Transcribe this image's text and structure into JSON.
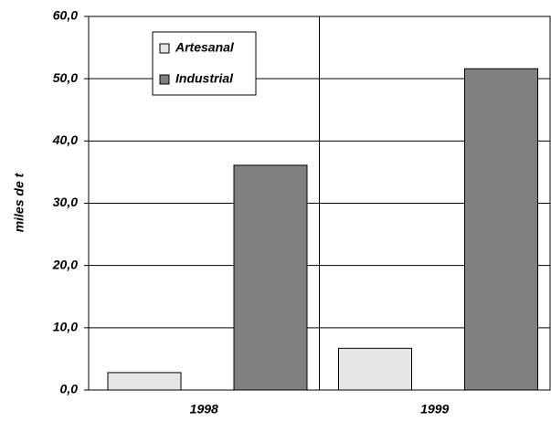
{
  "chart_data": {
    "type": "bar",
    "y_label": "miles de t",
    "categories": [
      "1998",
      "1999"
    ],
    "series": [
      {
        "name": "Artesanal",
        "color": "#e6e6e6",
        "values": [
          2.8,
          6.7
        ]
      },
      {
        "name": "Industrial",
        "color": "#808080",
        "values": [
          36.1,
          51.6
        ]
      }
    ],
    "ylim": [
      0,
      60
    ],
    "yticks": [
      {
        "value": 0,
        "label": "0,0"
      },
      {
        "value": 10,
        "label": "10,0"
      },
      {
        "value": 20,
        "label": "20,0"
      },
      {
        "value": 30,
        "label": "30,0"
      },
      {
        "value": 40,
        "label": "40,0"
      },
      {
        "value": 50,
        "label": "50,0"
      },
      {
        "value": 60,
        "label": "60,0"
      }
    ],
    "grid": true,
    "legend": "upper left"
  }
}
